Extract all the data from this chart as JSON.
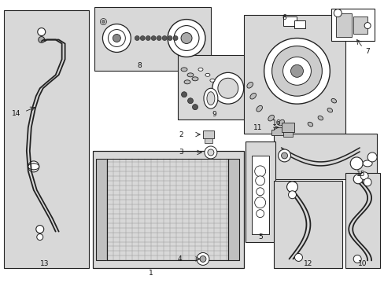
{
  "bg_color": "#ffffff",
  "box_bg": "#d8d8d8",
  "line_color": "#222222",
  "text_color": "#111111",
  "fig_w": 4.89,
  "fig_h": 3.6,
  "dpi": 100
}
